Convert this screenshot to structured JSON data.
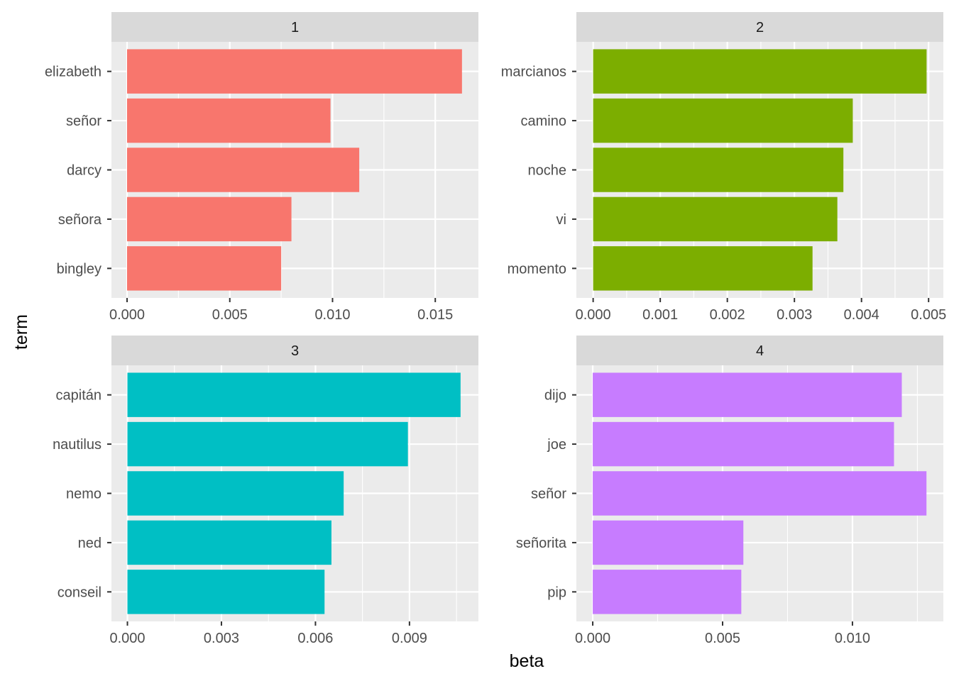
{
  "chart_data": {
    "type": "bar",
    "orientation": "horizontal",
    "layout": "facet_wrap 2x2",
    "xlabel": "beta",
    "ylabel": "term",
    "legend": "none",
    "grid": true,
    "panels": [
      {
        "facet": "1",
        "color": "#F8766D",
        "categories": [
          "elizabeth",
          "señor",
          "darcy",
          "señora",
          "bingley"
        ],
        "values": [
          0.0163,
          0.0099,
          0.0113,
          0.008,
          0.0075
        ],
        "xlim": [
          -0.00076,
          0.0171
        ],
        "ticks": [
          0.0,
          0.005,
          0.01,
          0.015
        ],
        "tick_labels": [
          "0.000",
          "0.005",
          "0.010",
          "0.015"
        ]
      },
      {
        "facet": "2",
        "color": "#7CAE00",
        "categories": [
          "marcianos",
          "camino",
          "noche",
          "vi",
          "momento"
        ],
        "values": [
          0.00497,
          0.00387,
          0.00373,
          0.00364,
          0.00327
        ],
        "xlim": [
          -0.00025,
          0.00522
        ],
        "ticks": [
          0.0,
          0.001,
          0.002,
          0.003,
          0.004,
          0.005
        ],
        "tick_labels": [
          "0.000",
          "0.001",
          "0.002",
          "0.003",
          "0.004",
          "0.005"
        ]
      },
      {
        "facet": "3",
        "color": "#00BFC4",
        "categories": [
          "capitán",
          "nautilus",
          "nemo",
          "ned",
          "conseil"
        ],
        "values": [
          0.01063,
          0.00895,
          0.0069,
          0.00651,
          0.00629
        ],
        "xlim": [
          -0.00051,
          0.0112
        ],
        "ticks": [
          0.0,
          0.003,
          0.006,
          0.009
        ],
        "tick_labels": [
          "0.000",
          "0.003",
          "0.006",
          "0.009"
        ]
      },
      {
        "facet": "4",
        "color": "#C77CFF",
        "categories": [
          "dijo",
          "joe",
          "señor",
          "señorita",
          "pip"
        ],
        "values": [
          0.0119,
          0.0116,
          0.01285,
          0.0058,
          0.00572
        ],
        "xlim": [
          -0.00063,
          0.0135
        ],
        "ticks": [
          0.0,
          0.005,
          0.01
        ],
        "tick_labels": [
          "0.000",
          "0.005",
          "0.010"
        ]
      }
    ]
  }
}
